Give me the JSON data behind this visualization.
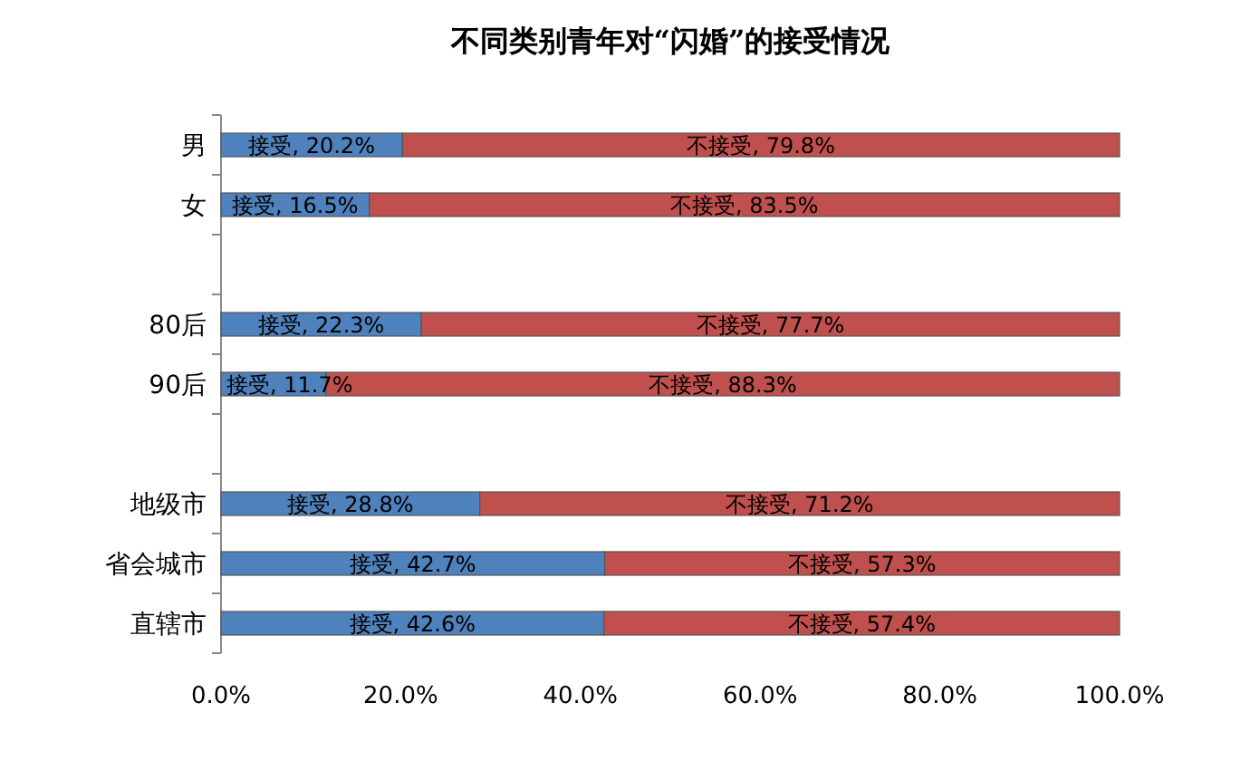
{
  "chart_data": {
    "type": "bar",
    "orientation": "horizontal",
    "stacked": true,
    "title": "不同类别青年对“闪婚”的接受情况",
    "categories": [
      "男",
      "女",
      null,
      "80后",
      "90后",
      null,
      "地级市",
      "省会城市",
      "直辖市"
    ],
    "series": [
      {
        "color": "#4f81bd",
        "values": [
          20.2,
          16.5,
          null,
          22.3,
          11.7,
          null,
          28.8,
          42.7,
          42.6
        ],
        "value_labels": [
          "接受, 20.2%",
          "接受, 16.5%",
          null,
          "接受, 22.3%",
          "接受, 11.7%",
          null,
          "接受, 28.8%",
          "接受, 42.7%",
          "接受, 42.6%"
        ]
      },
      {
        "color": "#c0504d",
        "values": [
          79.8,
          83.5,
          null,
          77.7,
          88.3,
          null,
          71.2,
          57.3,
          57.4
        ],
        "value_labels": [
          "不接受, 79.8%",
          "不接受, 83.5%",
          null,
          "不接受, 77.7%",
          "不接受, 88.3%",
          null,
          "不接受, 71.2%",
          "不接受, 57.3%",
          "不接受, 57.4%"
        ]
      }
    ],
    "xlim": [
      0,
      100
    ],
    "xticks": [
      {
        "value": 0,
        "label": "0.0%"
      },
      {
        "value": 20,
        "label": "20.0%"
      },
      {
        "value": 40,
        "label": "40.0%"
      },
      {
        "value": 60,
        "label": "60.0%"
      },
      {
        "value": 80,
        "label": "80.0%"
      },
      {
        "value": 100,
        "label": "100.0%"
      }
    ]
  }
}
